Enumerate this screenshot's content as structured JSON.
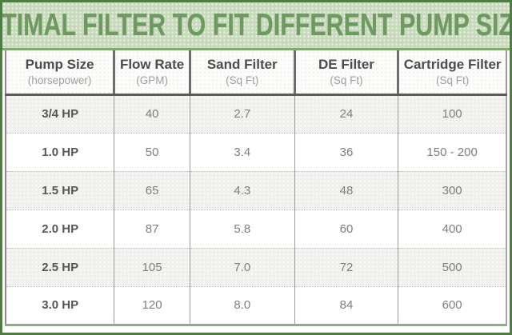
{
  "title": "OPTIMAL FILTER TO FIT DIFFERENT PUMP SIZES",
  "colors": {
    "frame_green": "#4f7c45",
    "title_bg": "#c6d9ba",
    "title_text": "#6e9961",
    "title_border": "#82a971",
    "header_text": "#4c4c4c",
    "header_sub_text": "#9e9e9e",
    "row_alt_bg": "#eff0ec",
    "cell_text": "#7e7e7e",
    "grid_gray": "#8a8a8a",
    "table_bottom_green": "#8db07c"
  },
  "table": {
    "columns": [
      {
        "label": "Pump Size",
        "sub": "(horsepower)"
      },
      {
        "label": "Flow Rate",
        "sub": "(GPM)"
      },
      {
        "label": "Sand Filter",
        "sub": "(Sq Ft)"
      },
      {
        "label": "DE Filter",
        "sub": "(Sq Ft)"
      },
      {
        "label": "Cartridge Filter",
        "sub": "(Sq Ft)"
      }
    ],
    "rows": [
      {
        "pump": "3/4 HP",
        "flow": "40",
        "sand": "2.7",
        "de": "24",
        "cartridge": "100"
      },
      {
        "pump": "1.0 HP",
        "flow": "50",
        "sand": "3.4",
        "de": "36",
        "cartridge": "150 - 200"
      },
      {
        "pump": "1.5 HP",
        "flow": "65",
        "sand": "4.3",
        "de": "48",
        "cartridge": "300"
      },
      {
        "pump": "2.0 HP",
        "flow": "87",
        "sand": "5.8",
        "de": "60",
        "cartridge": "400"
      },
      {
        "pump": "2.5 HP",
        "flow": "105",
        "sand": "7.0",
        "de": "72",
        "cartridge": "500"
      },
      {
        "pump": "3.0 HP",
        "flow": "120",
        "sand": "8.0",
        "de": "84",
        "cartridge": "600"
      }
    ]
  },
  "chart_data": {
    "type": "table",
    "title": "OPTIMAL FILTER TO FIT DIFFERENT PUMP SIZES",
    "columns": [
      "Pump Size (horsepower)",
      "Flow Rate (GPM)",
      "Sand Filter (Sq Ft)",
      "DE Filter (Sq Ft)",
      "Cartridge Filter (Sq Ft)"
    ],
    "rows": [
      [
        "3/4 HP",
        40,
        2.7,
        24,
        "100"
      ],
      [
        "1.0 HP",
        50,
        3.4,
        36,
        "150 - 200"
      ],
      [
        "1.5 HP",
        65,
        4.3,
        48,
        "300"
      ],
      [
        "2.0 HP",
        87,
        5.8,
        60,
        "400"
      ],
      [
        "2.5 HP",
        105,
        7.0,
        72,
        "500"
      ],
      [
        "3.0 HP",
        120,
        8.0,
        84,
        "600"
      ]
    ],
    "notes": "Rows alternate shaded/white; first data row (3/4 HP) is shaded."
  }
}
